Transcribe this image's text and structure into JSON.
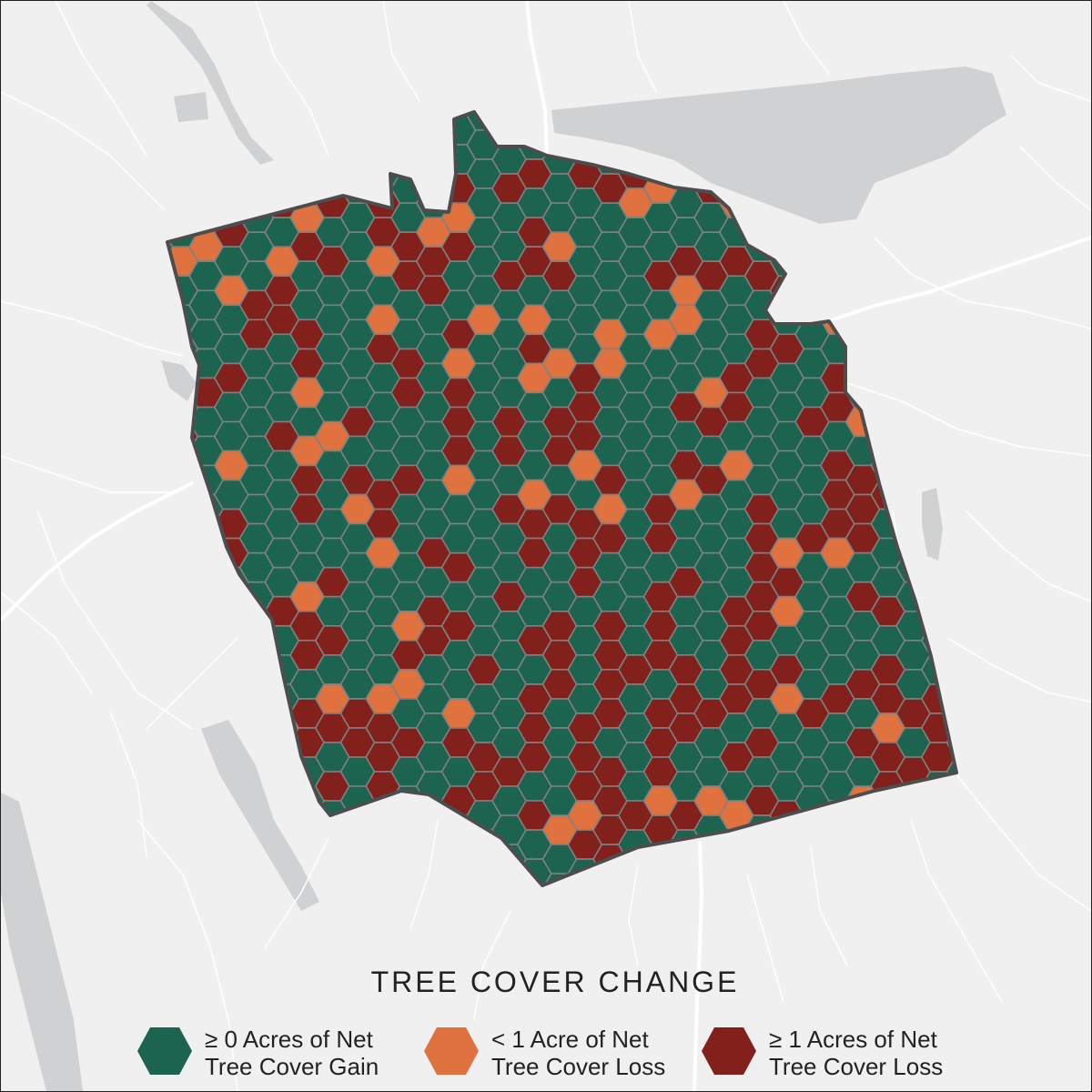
{
  "map": {
    "title": "TREE COVER CHANGE",
    "colors": {
      "background": "#f0f0f0",
      "water": "#cfd1d2",
      "roads": "#ffffff",
      "boundary": "#4d4d4d",
      "hex_outline": "#808080"
    },
    "legend": [
      {
        "key": "gain",
        "line1": "≥ 0 Acres of Net",
        "line2": "Tree Cover Gain",
        "color": "#1c6450"
      },
      {
        "key": "small_loss",
        "line1": "< 1 Acre of Net",
        "line2": "Tree Cover Loss",
        "color": "#df723e"
      },
      {
        "key": "large_loss",
        "line1": "≥ 1 Acres of Net",
        "line2": "Tree Cover Loss",
        "color": "#82201c"
      }
    ]
  }
}
